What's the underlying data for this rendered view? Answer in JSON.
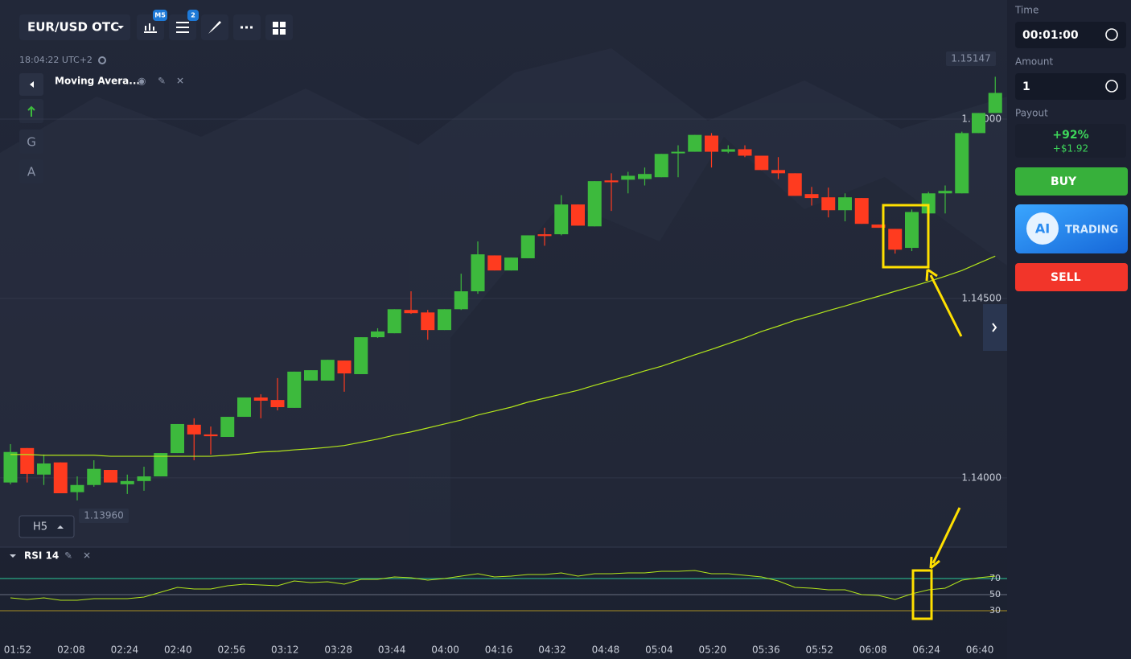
{
  "header": {
    "symbol": "EUR/USD OTC",
    "badges": [
      "M5",
      "2"
    ],
    "clock": "18:04:22 UTC+2",
    "indicator": "Moving Avera...",
    "tools": [
      "G",
      "A"
    ],
    "timeframe": "H5"
  },
  "chart_data": {
    "type": "candlestick",
    "open": [
      1.13987,
      1.14083,
      1.14009,
      1.14043,
      1.1396,
      1.1398,
      1.14022,
      1.13982,
      1.13991,
      1.14004,
      1.14069,
      1.14148,
      1.14121,
      1.14114,
      1.1417,
      1.14224,
      1.14217,
      1.14195,
      1.14271,
      1.14271,
      1.14327,
      1.14289,
      1.14392,
      1.14403,
      1.14468,
      1.14461,
      1.14412,
      1.1447,
      1.1452,
      1.1462,
      1.14578,
      1.14612,
      1.14679,
      1.14679,
      1.14762,
      1.14701,
      1.14829,
      1.14831,
      1.14833,
      1.14838,
      1.14905,
      1.14909,
      1.14954,
      1.14909,
      1.14916,
      1.14898,
      1.14858,
      1.14849,
      1.14791,
      1.14782,
      1.14746,
      1.1478,
      1.14706,
      1.14694,
      1.14641,
      1.14737,
      1.14793,
      1.14793,
      1.14961,
      1.15017
    ],
    "high": [
      1.14094,
      1.14083,
      1.14065,
      1.14043,
      1.14004,
      1.14049,
      1.14022,
      1.14009,
      1.14031,
      1.14069,
      1.1415,
      1.14166,
      1.14143,
      1.1417,
      1.14224,
      1.14233,
      1.14278,
      1.14296,
      1.143,
      1.14329,
      1.14327,
      1.14392,
      1.14417,
      1.1447,
      1.1452,
      1.14468,
      1.1447,
      1.14569,
      1.14659,
      1.1462,
      1.14614,
      1.14676,
      1.14697,
      1.14788,
      1.14762,
      1.14827,
      1.14849,
      1.14853,
      1.14865,
      1.14903,
      1.14927,
      1.14956,
      1.14961,
      1.14927,
      1.14927,
      1.14898,
      1.14894,
      1.14849,
      1.14811,
      1.14809,
      1.14793,
      1.1478,
      1.14706,
      1.14694,
      1.14748,
      1.14797,
      1.14815,
      1.14965,
      1.15017,
      1.15118
    ],
    "low": [
      1.13982,
      1.13987,
      1.1398,
      1.13957,
      1.13937,
      1.13975,
      1.13987,
      1.13955,
      1.13964,
      1.14004,
      1.14069,
      1.14049,
      1.14065,
      1.14114,
      1.1417,
      1.14166,
      1.14188,
      1.14195,
      1.14271,
      1.14271,
      1.1424,
      1.14289,
      1.1439,
      1.14403,
      1.14457,
      1.14385,
      1.14412,
      1.14468,
      1.14513,
      1.14578,
      1.14578,
      1.14612,
      1.14647,
      1.14676,
      1.14703,
      1.14701,
      1.14744,
      1.14793,
      1.14815,
      1.14838,
      1.14838,
      1.14909,
      1.14865,
      1.14905,
      1.14894,
      1.14858,
      1.14833,
      1.14786,
      1.14759,
      1.14726,
      1.14715,
      1.14708,
      1.14697,
      1.14625,
      1.14632,
      1.14703,
      1.14737,
      1.14793,
      1.14961,
      1.15017
    ],
    "close": [
      1.14072,
      1.14011,
      1.1404,
      1.13957,
      1.1398,
      1.14025,
      1.13987,
      1.13991,
      1.14004,
      1.14069,
      1.1415,
      1.14121,
      1.14116,
      1.1417,
      1.14224,
      1.14215,
      1.14197,
      1.14296,
      1.143,
      1.14329,
      1.14291,
      1.14392,
      1.14408,
      1.1447,
      1.14459,
      1.14412,
      1.1447,
      1.1452,
      1.14623,
      1.14578,
      1.14614,
      1.14676,
      1.14674,
      1.14762,
      1.14703,
      1.14827,
      1.14824,
      1.14842,
      1.14847,
      1.14903,
      1.14909,
      1.14956,
      1.14909,
      1.14916,
      1.14898,
      1.14858,
      1.14849,
      1.14786,
      1.1478,
      1.14746,
      1.14782,
      1.14708,
      1.14697,
      1.14636,
      1.14741,
      1.14793,
      1.148,
      1.14961,
      1.15017,
      1.15073
    ],
    "colors": {
      "up": "#3dba3d",
      "down": "#ff3b1f"
    },
    "moving_average": {
      "values": [
        1.14065,
        1.14065,
        1.14063,
        1.14063,
        1.14063,
        1.14063,
        1.1406,
        1.1406,
        1.1406,
        1.1406,
        1.1406,
        1.1406,
        1.1406,
        1.14063,
        1.14067,
        1.14072,
        1.14074,
        1.14078,
        1.14081,
        1.14085,
        1.1409,
        1.14099,
        1.14108,
        1.14119,
        1.14128,
        1.14139,
        1.1415,
        1.14161,
        1.14175,
        1.14186,
        1.14197,
        1.14211,
        1.14222,
        1.14233,
        1.14244,
        1.14258,
        1.14271,
        1.14284,
        1.14298,
        1.14311,
        1.14327,
        1.14343,
        1.14358,
        1.14374,
        1.1439,
        1.14408,
        1.14423,
        1.14439,
        1.14452,
        1.14466,
        1.14479,
        1.14493,
        1.14506,
        1.1452,
        1.14533,
        1.14547,
        1.14562,
        1.14578,
        1.14598,
        1.14618
      ],
      "color": "#b3e61b"
    },
    "ylim": [
      1.138,
      1.15332
    ],
    "yticks": [
      {
        "value": 1.14,
        "label": "1.14000"
      },
      {
        "value": 1.145,
        "label": "1.14500"
      },
      {
        "value": 1.15,
        "label": "1.15000"
      }
    ],
    "price_labels": [
      "1.15147",
      "1.13960"
    ],
    "x_labels": [
      "01:52",
      "02:08",
      "02:24",
      "02:40",
      "02:56",
      "03:12",
      "03:28",
      "03:44",
      "04:00",
      "04:16",
      "04:32",
      "04:48",
      "05:04",
      "05:20",
      "05:36",
      "05:52",
      "06:08",
      "06:24",
      "06:40"
    ]
  },
  "rsi": {
    "type": "line",
    "name": "RSI 14",
    "values": [
      46,
      44,
      46,
      43,
      43,
      45,
      45,
      45,
      47,
      53,
      59,
      57,
      57,
      61,
      63,
      62,
      61,
      67,
      65,
      66,
      63,
      69,
      69,
      72,
      71,
      68,
      70,
      73,
      76,
      72,
      73,
      75,
      75,
      77,
      73,
      76,
      76,
      77,
      77,
      79,
      79,
      80,
      76,
      76,
      74,
      72,
      67,
      59,
      58,
      56,
      56,
      50,
      49,
      44,
      51,
      56,
      58,
      68,
      71,
      73
    ],
    "color": "#b3e61b",
    "ylim": [
      0,
      100
    ],
    "yticks": [
      70,
      50,
      30
    ],
    "level_colors": [
      "#2aa884",
      "#5a6070",
      "#8c7a26"
    ]
  },
  "sidebar": {
    "time_label": "Time",
    "time": "00:01:00",
    "amount_label": "Amount",
    "amount": "1",
    "payout_label": "Payout",
    "payout_percent": "+92%",
    "payout_amount": "+$1.92",
    "buy": "BUY",
    "ai": "AI",
    "ai_trading": "TRADING",
    "sell": "SELL"
  }
}
